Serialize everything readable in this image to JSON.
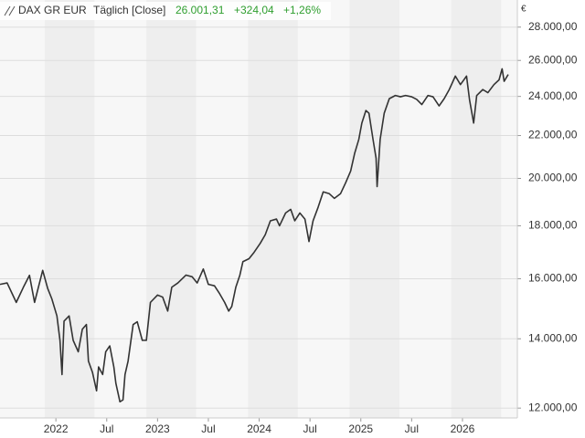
{
  "chart_data": {
    "type": "line",
    "legend_header": {
      "name": "DAX GR EUR",
      "interval": "Täglich [Close]",
      "last": "26.001,31",
      "change": "+324,04",
      "change_pct": "+1,26%"
    },
    "y_unit": "€",
    "log_scale": true,
    "grid": true,
    "xlim": [
      2021.45,
      2026.54
    ],
    "ylim": [
      11740,
      29740
    ],
    "xticks": [
      2022,
      {
        "value": 2022.5,
        "label": "Jul"
      },
      2023,
      {
        "value": 2023.5,
        "label": "Jul"
      },
      2024,
      {
        "value": 2024.5,
        "label": "Jul"
      },
      2025,
      {
        "value": 2025.5,
        "label": "Jul"
      },
      2026
    ],
    "yticks": [
      {
        "value": 12000,
        "label": "12.000,00"
      },
      {
        "value": 14000,
        "label": "14.000,00"
      },
      {
        "value": 16000,
        "label": "16.000,00"
      },
      {
        "value": 18000,
        "label": "18.000,00"
      },
      {
        "value": 20000,
        "label": "20.000,00"
      },
      {
        "value": 22000,
        "label": "22.000,00"
      },
      {
        "value": 24000,
        "label": "24.000,00"
      },
      {
        "value": 26000,
        "label": "26.000,00"
      },
      {
        "value": 28000,
        "label": "28.000,00"
      }
    ],
    "series": [
      {
        "name": "DAX GR EUR",
        "color": "#333333",
        "x": [
          2021.45,
          2021.52,
          2021.61,
          2021.68,
          2021.74,
          2021.79,
          2021.87,
          2021.92,
          2021.96,
          2022.01,
          2022.04,
          2022.06,
          2022.08,
          2022.13,
          2022.17,
          2022.22,
          2022.26,
          2022.3,
          2022.32,
          2022.36,
          2022.4,
          2022.42,
          2022.46,
          2022.49,
          2022.53,
          2022.57,
          2022.59,
          2022.63,
          2022.66,
          2022.68,
          2022.71,
          2022.76,
          2022.8,
          2022.85,
          2022.89,
          2022.93,
          2023.0,
          2023.05,
          2023.1,
          2023.14,
          2023.2,
          2023.28,
          2023.34,
          2023.39,
          2023.45,
          2023.5,
          2023.56,
          2023.61,
          2023.66,
          2023.7,
          2023.73,
          2023.77,
          2023.81,
          2023.84,
          2023.9,
          2023.95,
          2024.01,
          2024.06,
          2024.11,
          2024.17,
          2024.2,
          2024.26,
          2024.31,
          2024.35,
          2024.4,
          2024.45,
          2024.49,
          2024.53,
          2024.58,
          2024.63,
          2024.69,
          2024.74,
          2024.8,
          2024.85,
          2024.9,
          2024.94,
          2024.98,
          2025.01,
          2025.05,
          2025.08,
          2025.12,
          2025.15,
          2025.16,
          2025.19,
          2025.23,
          2025.28,
          2025.34,
          2025.39,
          2025.44,
          2025.5,
          2025.55,
          2025.6,
          2025.66,
          2025.71,
          2025.77,
          2025.82,
          2025.87,
          2025.93,
          2025.98,
          2026.04,
          2026.07,
          2026.11,
          2026.14,
          2026.2,
          2026.25,
          2026.31,
          2026.36,
          2026.39,
          2026.41,
          2026.45
        ],
        "values": [
          15800,
          15850,
          15180,
          15700,
          16120,
          15180,
          16300,
          15650,
          15300,
          14730,
          13950,
          12930,
          14560,
          14730,
          13950,
          13600,
          14300,
          14450,
          13320,
          12990,
          12470,
          13150,
          12930,
          13600,
          13780,
          13150,
          12680,
          12170,
          12220,
          12930,
          13320,
          14450,
          14540,
          13950,
          13950,
          15180,
          15430,
          15360,
          14890,
          15700,
          15850,
          16130,
          16070,
          15850,
          16350,
          15800,
          15750,
          15480,
          15180,
          14890,
          15040,
          15700,
          16130,
          16620,
          16730,
          16970,
          17310,
          17650,
          18200,
          18270,
          18000,
          18520,
          18670,
          18200,
          18520,
          18270,
          17380,
          18200,
          18760,
          19410,
          19330,
          19130,
          19330,
          19800,
          20330,
          21160,
          21810,
          22620,
          23260,
          23120,
          21810,
          20920,
          19640,
          21810,
          23120,
          23880,
          24050,
          23980,
          24050,
          23980,
          23840,
          23570,
          24050,
          23980,
          23500,
          23880,
          24370,
          25110,
          24640,
          25110,
          23800,
          22620,
          24050,
          24370,
          24200,
          24640,
          24900,
          25520,
          24820,
          25200
        ]
      }
    ]
  }
}
